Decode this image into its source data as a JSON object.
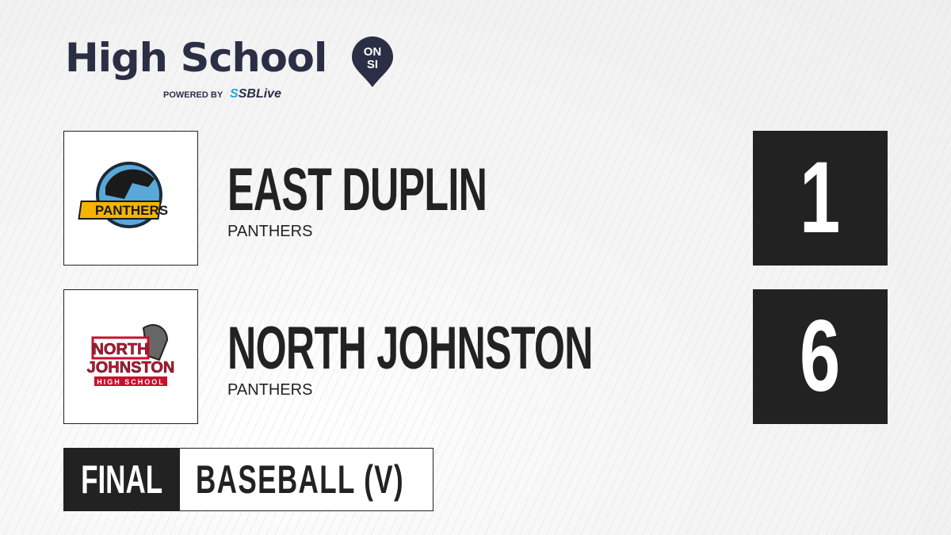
{
  "brand": {
    "title": "High School",
    "badge_top": "ON",
    "badge_bottom": "SI",
    "powered_by": "POWERED BY",
    "partner_prefix": "S",
    "partner": "SBLive"
  },
  "teams": [
    {
      "name": "EAST DUPLIN",
      "mascot": "PANTHERS",
      "score": "1",
      "logo_text": "PANTHERS",
      "logo_color": "#f5b400"
    },
    {
      "name": "NORTH JOHNSTON",
      "mascot": "PANTHERS",
      "score": "6",
      "logo_text_1": "NORTH",
      "logo_text_2": "JOHNSTON",
      "logo_text_3": "HIGH SCHOOL",
      "logo_color": "#c8102e"
    }
  ],
  "game": {
    "status": "FINAL",
    "sport": "BASEBALL (V)"
  },
  "colors": {
    "dark": "#222222",
    "brand_navy": "#2b2f45",
    "sblive_blue": "#1fa6e0"
  }
}
